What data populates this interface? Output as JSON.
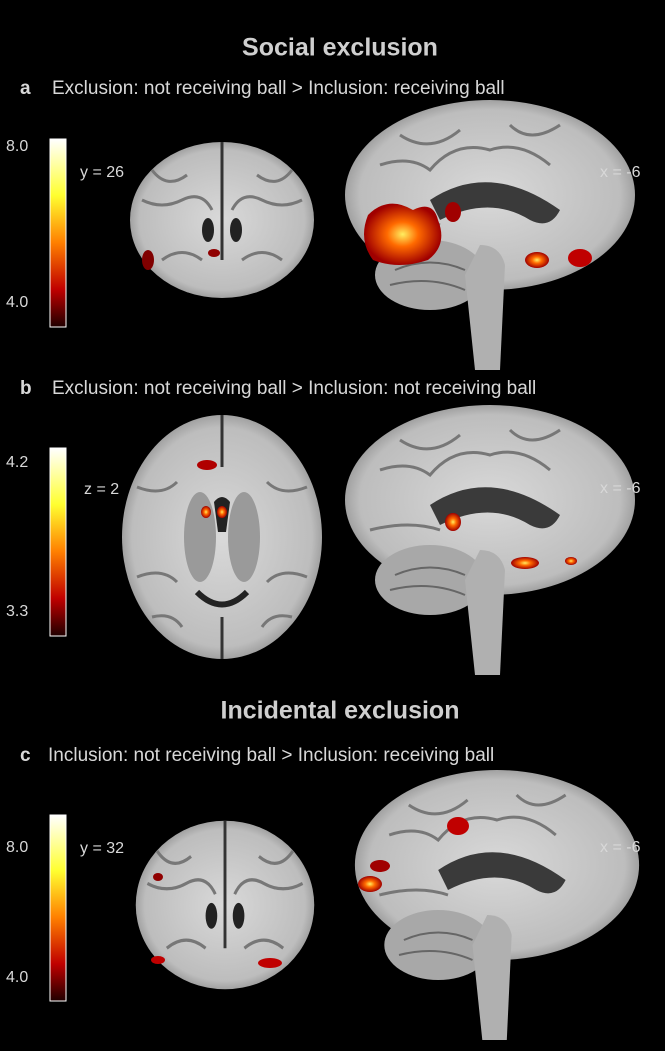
{
  "sections": [
    {
      "heading": "Social exclusion",
      "panels": [
        {
          "label": "a",
          "contrast": "Exclusion: not receiving ball > Inclusion: receiving ball",
          "colorbar": {
            "max": "8.0",
            "min": "4.0"
          },
          "left_coord": "y = 26",
          "right_coord": "x = -6"
        },
        {
          "label": "b",
          "contrast": "Exclusion: not receiving ball > Inclusion: not receiving ball",
          "colorbar": {
            "max": "4.2",
            "min": "3.3"
          },
          "left_coord": "z = 2",
          "right_coord": "x = -6"
        }
      ]
    },
    {
      "heading": "Incidental exclusion",
      "panels": [
        {
          "label": "c",
          "contrast": "Inclusion: not receiving ball > Inclusion: receiving ball",
          "colorbar": {
            "max": "8.0",
            "min": "4.0"
          },
          "left_coord": "y = 32",
          "right_coord": "x = -6"
        }
      ]
    }
  ]
}
